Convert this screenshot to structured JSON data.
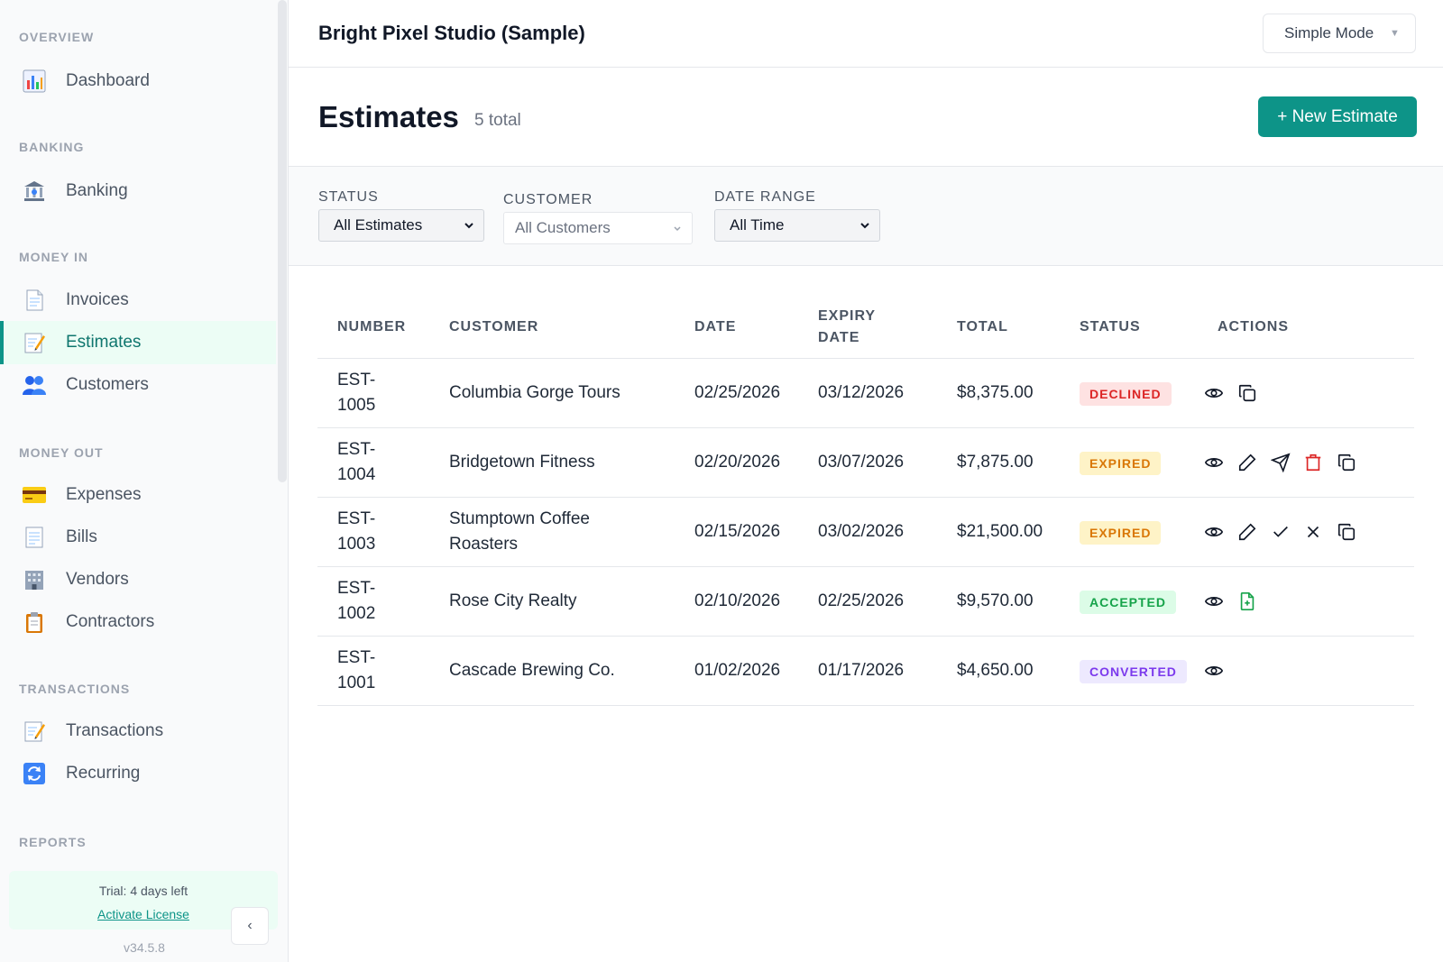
{
  "app": {
    "company_name": "Bright Pixel Studio (Sample)",
    "mode_label": "Simple Mode"
  },
  "sidebar": {
    "sections": {
      "overview": "OVERVIEW",
      "banking": "BANKING",
      "money_in": "MONEY IN",
      "money_out": "MONEY OUT",
      "transactions": "TRANSACTIONS",
      "reports": "REPORTS"
    },
    "items": {
      "dashboard": "Dashboard",
      "banking": "Banking",
      "invoices": "Invoices",
      "estimates": "Estimates",
      "customers": "Customers",
      "expenses": "Expenses",
      "bills": "Bills",
      "vendors": "Vendors",
      "contractors": "Contractors",
      "transactions": "Transactions",
      "recurring": "Recurring"
    },
    "active_item": "estimates",
    "trial_text": "Trial: 4 days left",
    "activate_link": "Activate License",
    "version": "v34.5.8",
    "collapse_glyph": "‹"
  },
  "page": {
    "title": "Estimates",
    "count_label": "5 total",
    "new_button": "+ New Estimate"
  },
  "filters": {
    "status": {
      "label": "STATUS",
      "value": "All Estimates"
    },
    "customer": {
      "label": "CUSTOMER",
      "value": "All Customers"
    },
    "date_range": {
      "label": "DATE RANGE",
      "value": "All Time"
    }
  },
  "table": {
    "headers": {
      "number": "NUMBER",
      "customer": "CUSTOMER",
      "date": "DATE",
      "expiry_line1": "EXPIRY",
      "expiry_line2": "DATE",
      "total": "TOTAL",
      "status": "STATUS",
      "actions": "ACTIONS"
    },
    "rows": [
      {
        "number_prefix": "EST-",
        "number_suffix": "1005",
        "customer_line1": "Columbia Gorge Tours",
        "customer_line2": "",
        "date": "02/25/2026",
        "expiry": "03/12/2026",
        "total": "$8,375.00",
        "status": "DECLINED",
        "actions": [
          "view-icon",
          "duplicate-icon"
        ]
      },
      {
        "number_prefix": "EST-",
        "number_suffix": "1004",
        "customer_line1": "Bridgetown Fitness",
        "customer_line2": "",
        "date": "02/20/2026",
        "expiry": "03/07/2026",
        "total": "$7,875.00",
        "status": "EXPIRED",
        "actions": [
          "view-icon",
          "edit-icon",
          "send-icon",
          "delete-icon",
          "duplicate-icon"
        ]
      },
      {
        "number_prefix": "EST-",
        "number_suffix": "1003",
        "customer_line1": "Stumptown Coffee",
        "customer_line2": "Roasters",
        "date": "02/15/2026",
        "expiry": "03/02/2026",
        "total": "$21,500.00",
        "status": "EXPIRED",
        "actions": [
          "view-icon",
          "edit-icon",
          "accept-icon",
          "decline-icon",
          "duplicate-icon"
        ]
      },
      {
        "number_prefix": "EST-",
        "number_suffix": "1002",
        "customer_line1": "Rose City Realty",
        "customer_line2": "",
        "date": "02/10/2026",
        "expiry": "02/25/2026",
        "total": "$9,570.00",
        "status": "ACCEPTED",
        "actions": [
          "view-icon",
          "convert-to-invoice-icon"
        ]
      },
      {
        "number_prefix": "EST-",
        "number_suffix": "1001",
        "customer_line1": "Cascade Brewing Co.",
        "customer_line2": "",
        "date": "01/02/2026",
        "expiry": "01/17/2026",
        "total": "$4,650.00",
        "status": "CONVERTED",
        "actions": [
          "view-icon"
        ]
      }
    ]
  },
  "colors": {
    "accent": "#0d9488",
    "declined": "#dc2626",
    "expired": "#d97706",
    "accepted": "#16a34a",
    "converted": "#7c3aed"
  }
}
